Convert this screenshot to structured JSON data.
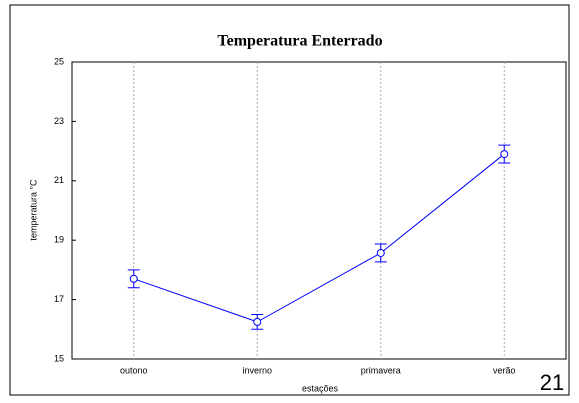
{
  "chart_data": {
    "type": "line",
    "title": "Temperatura Enterrado",
    "x_label": "estações",
    "y_label": "temperatura °C",
    "categories": [
      "outono",
      "inverno",
      "primavera",
      "verão"
    ],
    "series": [
      {
        "color": "#0000ff",
        "values": [
          17.7,
          16.25,
          18.57,
          21.9
        ],
        "errors": [
          0.3,
          0.25,
          0.3,
          0.3
        ]
      }
    ],
    "ylim": [
      15,
      25
    ],
    "yticks": [
      15,
      17,
      19,
      21,
      23,
      25
    ],
    "grid": true
  },
  "page_number": "21"
}
